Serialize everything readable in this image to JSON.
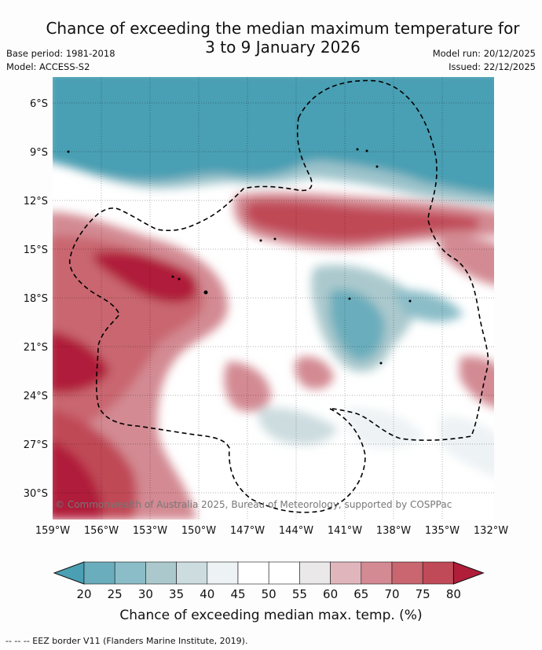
{
  "title": {
    "line1": "Chance of exceeding the median maximum temperature for",
    "line2": "3 to 9 January 2026"
  },
  "meta": {
    "base_period": "Base period: 1981-2018",
    "model": "Model: ACCESS-S2",
    "model_run": "Model run: 20/12/2025",
    "issued": "Issued: 22/12/2025"
  },
  "map": {
    "lat_labels": [
      "6°S",
      "9°S",
      "12°S",
      "15°S",
      "18°S",
      "21°S",
      "24°S",
      "27°S",
      "30°S"
    ],
    "lon_labels": [
      "159°W",
      "156°W",
      "153°W",
      "150°W",
      "147°W",
      "144°W",
      "141°W",
      "138°W",
      "135°W",
      "132°W"
    ],
    "copyright": "© Commonwealth of Australia 2025, Bureau of Meteorology, supported by COSPPac"
  },
  "colorbar": {
    "ticks": [
      "20",
      "25",
      "30",
      "35",
      "40",
      "45",
      "50",
      "55",
      "60",
      "65",
      "70",
      "75",
      "80"
    ],
    "colors": [
      "#4a9fb3",
      "#6aadbc",
      "#8bbdc8",
      "#abc9cd",
      "#ccdcdf",
      "#edf2f4",
      "#ffffff",
      "#ffffff",
      "#ebe8ea",
      "#e0b6bc",
      "#d38a93",
      "#c96670",
      "#c04a57",
      "#b01e3a"
    ],
    "title": "Chance of exceeding median max. temp. (%)"
  },
  "footnote": "--  --  -- EEZ border V11 (Flanders Marine Institute, 2019)."
}
